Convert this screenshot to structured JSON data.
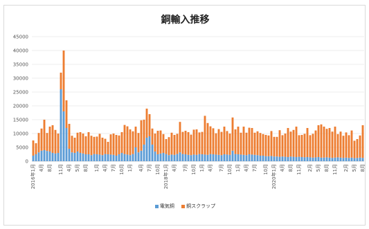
{
  "chart_data": {
    "type": "bar",
    "stacked": true,
    "title": "銅輸入推移",
    "xlabel": "",
    "ylabel": "",
    "ylim": [
      0,
      45000
    ],
    "y_ticks": [
      "0",
      "5000",
      "10000",
      "15000",
      "20000",
      "25000",
      "30000",
      "35000",
      "40000",
      "45000"
    ],
    "grid": true,
    "legend_position": "bottom",
    "x_tick_labels": [
      "2016年1月",
      "4月",
      "8月",
      "11月",
      "4月",
      "5月",
      "8月",
      "1月",
      "4月",
      "7月",
      "10月",
      "1月",
      "4月",
      "7月",
      "10月",
      "2018年1月",
      "4月",
      "7月",
      "10月",
      "1月",
      "4月",
      "7月",
      "10月",
      "1月",
      "4月",
      "7月",
      "10月",
      "2020年1月",
      "4月",
      "8月",
      "11月",
      "2月",
      "5月",
      "8月",
      "11月",
      "2月",
      "5月",
      "8月"
    ],
    "series": [
      {
        "name": "電気銅",
        "color": "#5b9bd5",
        "values": [
          2000,
          2500,
          3200,
          3800,
          4000,
          3700,
          3500,
          3000,
          2800,
          3000,
          26000,
          18000,
          12000,
          4500,
          3200,
          3000,
          3500,
          3000,
          2800,
          2500,
          2500,
          2200,
          2600,
          2500,
          2400,
          2200,
          2600,
          2500,
          2400,
          2300,
          2000,
          2500,
          3000,
          2600,
          2400,
          2200,
          2600,
          5000,
          3200,
          3800,
          6000,
          8500,
          9000,
          6000,
          3500,
          2500,
          2800,
          3000,
          2600,
          2200,
          2400,
          2300,
          2600,
          3200,
          2600,
          2500,
          2300,
          2200,
          2400,
          2300,
          2600,
          2500,
          2400,
          2300,
          2600,
          2500,
          2400,
          2300,
          2200,
          2500,
          2400,
          2300,
          3800,
          2600,
          2500,
          2400,
          2300,
          2200,
          2500,
          2400,
          2300,
          2200,
          2000,
          2000,
          1800,
          1800,
          1900,
          1700,
          1700,
          1600,
          1700,
          1600,
          1500,
          1700,
          1600,
          1500,
          1600,
          1500,
          1400,
          1500,
          1400,
          1300,
          1400,
          1500,
          1300,
          1300,
          1400,
          1300,
          1200,
          1300,
          1400,
          1300,
          1200,
          1300,
          1200,
          1300,
          1100,
          1200,
          1300,
          1200
        ]
      },
      {
        "name": "銅スクラップ",
        "color": "#ed7d31",
        "values": [
          5500,
          4000,
          7000,
          8000,
          11000,
          6500,
          9000,
          10000,
          8500,
          7000,
          6000,
          22000,
          10000,
          9000,
          6000,
          5500,
          6800,
          7500,
          7200,
          6500,
          8000,
          7000,
          6200,
          6400,
          7500,
          6300,
          5500,
          4500,
          7300,
          7700,
          7500,
          6800,
          7500,
          10500,
          10200,
          9300,
          8200,
          7500,
          7000,
          11000,
          9000,
          10500,
          8000,
          5800,
          6500,
          8500,
          8300,
          6800,
          5400,
          6500,
          7900,
          7200,
          7300,
          11000,
          8000,
          8500,
          8200,
          7400,
          9000,
          9200,
          7800,
          8100,
          14000,
          11500,
          10000,
          9400,
          7700,
          9300,
          8400,
          10000,
          8500,
          7700,
          12000,
          8900,
          10000,
          7900,
          10200,
          8100,
          9600,
          9600,
          8000,
          8600,
          8200,
          7800,
          7700,
          7500,
          9000,
          7100,
          7100,
          9600,
          7700,
          8400,
          10500,
          9000,
          9700,
          11000,
          7800,
          8000,
          8500,
          10500,
          8000,
          8600,
          9700,
          11500,
          12000,
          11200,
          10300,
          10700,
          9500,
          11200,
          8400,
          9400,
          8000,
          9100,
          8200,
          9800,
          6300,
          6800,
          8000,
          11800
        ]
      }
    ]
  }
}
